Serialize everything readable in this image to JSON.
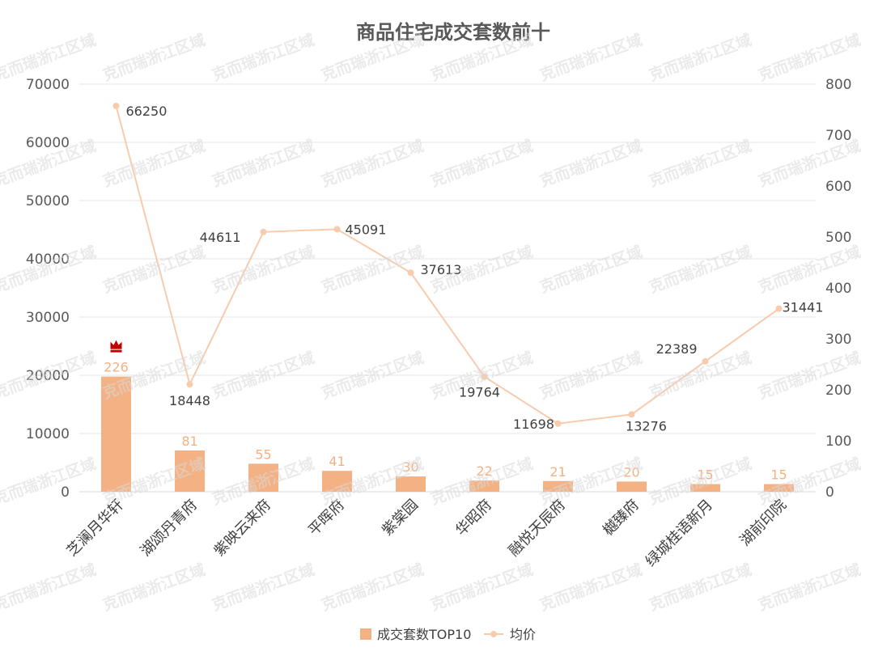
{
  "chart_data": {
    "type": "bar+line",
    "title": "商品住宅成交套数前十",
    "categories": [
      "芝澜月华轩",
      "湖颂丹青府",
      "紫映云来府",
      "平晖府",
      "紫棠园",
      "华昭府",
      "融悦天辰府",
      "樾臻府",
      "绿城桂语新月",
      "湖前印院"
    ],
    "series": [
      {
        "name": "成交套数TOP10",
        "type": "bar",
        "axis": "right",
        "values": [
          226,
          81,
          55,
          41,
          30,
          22,
          21,
          20,
          15,
          15
        ]
      },
      {
        "name": "均价",
        "type": "line",
        "axis": "left",
        "values": [
          66250,
          18448,
          44611,
          45091,
          37613,
          19764,
          11698,
          13276,
          22389,
          31441
        ]
      }
    ],
    "y_left": {
      "min": 0,
      "max": 70000,
      "ticks": [
        "0",
        "10000",
        "20000",
        "30000",
        "40000",
        "50000",
        "60000",
        "70000"
      ]
    },
    "y_right": {
      "min": 0,
      "max": 800,
      "ticks": [
        "0",
        "100",
        "200",
        "300",
        "400",
        "500",
        "600",
        "700",
        "800"
      ]
    },
    "grid": true,
    "legend_position": "bottom",
    "colors": {
      "bar": "#F4B183",
      "line": "#F8CBAD",
      "crown": "#C00000",
      "grid": "#E7E6E6",
      "axis_text": "#595959"
    }
  },
  "watermark": "克而瑞浙江区域",
  "crown_icon": "crown-icon"
}
